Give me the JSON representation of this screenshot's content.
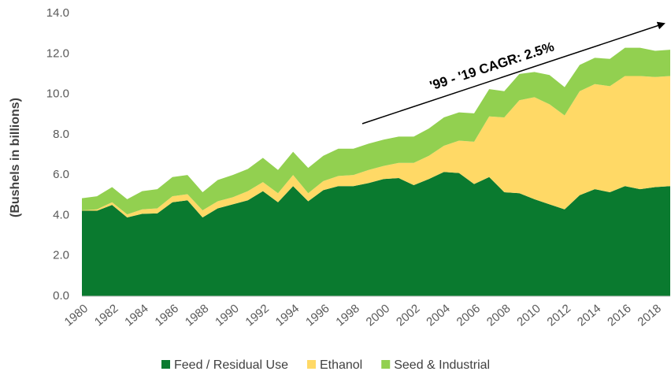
{
  "chart_data": {
    "type": "stacked_area",
    "y_label": "(Bushels in billions)",
    "annotation": "'99 - '19 CAGR: 2.5%",
    "categories": [
      "1980",
      null,
      "1982",
      null,
      "1984",
      null,
      "1986",
      null,
      "1988",
      null,
      "1990",
      null,
      "1992",
      null,
      "1994",
      null,
      "1996",
      null,
      "1998",
      null,
      "2000",
      null,
      "2002",
      null,
      "2004",
      null,
      "2006",
      null,
      "2008",
      null,
      "2010",
      null,
      "2012",
      null,
      "2014",
      null,
      "2016",
      null,
      "2018",
      null
    ],
    "series": [
      {
        "name": "Feed / Residual Use",
        "color": "#0a7a2f",
        "values": [
          4.23,
          4.23,
          4.52,
          3.9,
          4.08,
          4.1,
          4.65,
          4.75,
          3.9,
          4.35,
          4.55,
          4.75,
          5.2,
          4.65,
          5.45,
          4.7,
          5.25,
          5.45,
          5.45,
          5.6,
          5.8,
          5.85,
          5.5,
          5.8,
          6.15,
          6.1,
          5.55,
          5.9,
          5.15,
          5.1,
          4.8,
          4.55,
          4.3,
          5.0,
          5.3,
          5.15,
          5.45,
          5.3,
          5.4,
          5.45
        ]
      },
      {
        "name": "Ethanol",
        "color": "#ffd966",
        "values": [
          0.02,
          0.07,
          0.13,
          0.15,
          0.22,
          0.25,
          0.3,
          0.3,
          0.35,
          0.35,
          0.35,
          0.45,
          0.45,
          0.45,
          0.55,
          0.4,
          0.45,
          0.5,
          0.55,
          0.65,
          0.65,
          0.75,
          1.1,
          1.15,
          1.3,
          1.6,
          2.1,
          3.0,
          3.7,
          4.6,
          5.05,
          4.95,
          4.65,
          5.15,
          5.2,
          5.25,
          5.45,
          5.6,
          5.45,
          5.45
        ]
      },
      {
        "name": "Seed & Industrial",
        "color": "#92d050",
        "values": [
          0.6,
          0.65,
          0.75,
          0.75,
          0.9,
          0.95,
          0.95,
          0.95,
          0.9,
          1.05,
          1.1,
          1.1,
          1.2,
          1.15,
          1.15,
          1.25,
          1.25,
          1.35,
          1.3,
          1.3,
          1.3,
          1.3,
          1.3,
          1.35,
          1.4,
          1.4,
          1.4,
          1.35,
          1.3,
          1.3,
          1.25,
          1.45,
          1.4,
          1.3,
          1.3,
          1.35,
          1.4,
          1.4,
          1.3,
          1.3
        ]
      }
    ],
    "ylim": [
      0,
      14
    ],
    "yticks": [
      {
        "value": 0,
        "label": "0.0"
      },
      {
        "value": 2,
        "label": "2.0"
      },
      {
        "value": 4,
        "label": "4.0"
      },
      {
        "value": 6,
        "label": "6.0"
      },
      {
        "value": 8,
        "label": "8.0"
      },
      {
        "value": 10,
        "label": "10.0"
      },
      {
        "value": 12,
        "label": "12.0"
      },
      {
        "value": 14,
        "label": "14.0"
      }
    ],
    "legend": "bottom"
  }
}
